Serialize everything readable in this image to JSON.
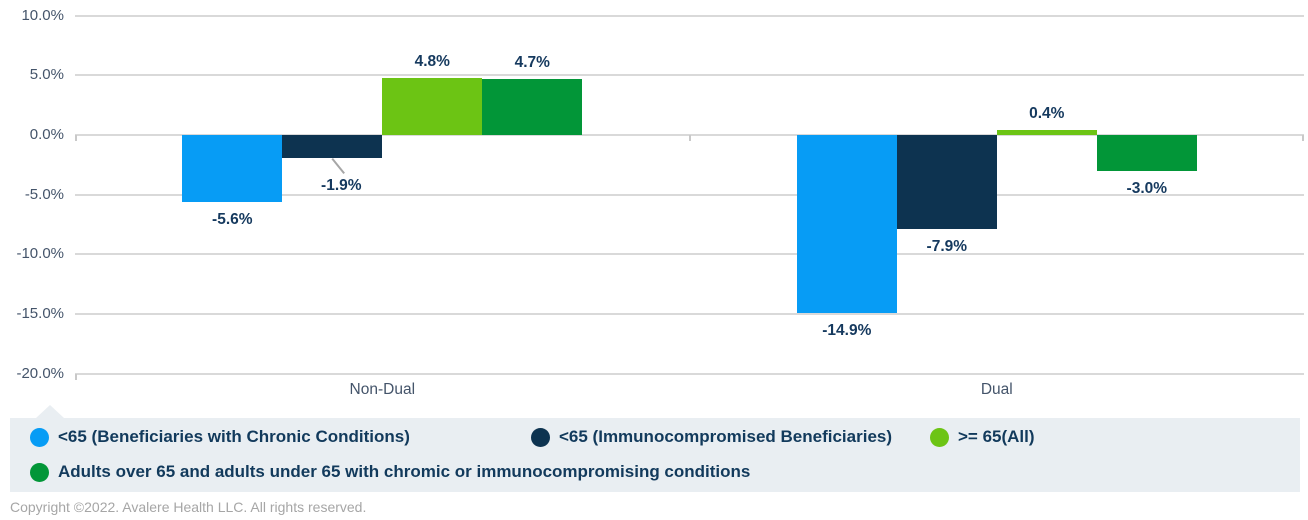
{
  "chart_data": {
    "type": "bar",
    "categories": [
      "Non-Dual",
      "Dual"
    ],
    "series": [
      {
        "name": "<65 (Beneficiaries with Chronic Conditions)",
        "color": "#079CF5",
        "values": [
          -5.6,
          -14.9
        ],
        "labels": [
          "-5.6%",
          "-14.9%"
        ]
      },
      {
        "name": "<65 (Immunocompromised Beneficiaries)",
        "color": "#0D3350",
        "values": [
          -1.9,
          -7.9
        ],
        "labels": [
          "-1.9%",
          "-7.9%"
        ]
      },
      {
        "name": ">= 65(All)",
        "color": "#6CC414",
        "values": [
          4.8,
          0.4
        ],
        "labels": [
          "4.8%",
          "0.4%"
        ]
      },
      {
        "name": "Adults over 65 and adults under 65 with chromic or immunocompromising conditions",
        "color": "#029638",
        "values": [
          4.7,
          -3.0
        ],
        "labels": [
          "4.7%",
          "-3.0%"
        ]
      }
    ],
    "y_axis": {
      "tick_labels": [
        "10.0%",
        "5.0%",
        "0.0%",
        "-5.0%",
        "-10.0%",
        "-15.0%",
        "-20.0%"
      ],
      "tick_values": [
        10,
        5,
        0,
        -5,
        -10,
        -15,
        -20
      ],
      "min": -20,
      "max": 10
    },
    "grid": true,
    "legend_position": "bottom",
    "title": "",
    "xlabel": "",
    "ylabel": ""
  },
  "colors": {
    "grid": "#D9D9D9",
    "axis_text": "#44546A",
    "data_label": "#15395E",
    "legend_bg": "#E9EEF2",
    "legend_text": "#123A5C"
  },
  "footer": {
    "copyright": "Copyright ©2022. Avalere Health LLC. All rights reserved."
  }
}
